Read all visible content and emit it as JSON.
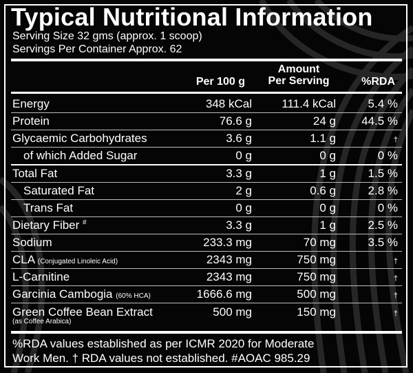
{
  "title": "Typical Nutritional Information",
  "serving_size": "Serving Size 32 gms (approx. 1 scoop)",
  "servings_per_container": "Servings Per Container Approx. 62",
  "headers": {
    "per100": "Per 100 g",
    "amount_line1": "Amount",
    "amount_line2": "Per Serving",
    "rda": "%RDA"
  },
  "rows": [
    {
      "label": "Energy",
      "per100": "348 kCal",
      "serving": "111.4 kCal",
      "rda": "5.4 %"
    },
    {
      "label": "Protein",
      "per100": "76.6 g",
      "serving": "24 g",
      "rda": "44.5 %"
    },
    {
      "label": "Glycaemic Carbohydrates",
      "per100": "3.6 g",
      "serving": "1.1 g",
      "rda": "†"
    },
    {
      "label": "of which Added Sugar",
      "per100": "0 g",
      "serving": "0 g",
      "rda": "0 %"
    },
    {
      "label": "Total Fat",
      "per100": "3.3 g",
      "serving": "1 g",
      "rda": "1.5 %"
    },
    {
      "label": "Saturated Fat",
      "per100": "2 g",
      "serving": "0.6 g",
      "rda": "2.8 %"
    },
    {
      "label": "Trans Fat",
      "per100": "0 g",
      "serving": "0 g",
      "rda": "0 %"
    },
    {
      "label": "Dietary Fiber",
      "mark": "#",
      "per100": "3.3 g",
      "serving": "1 g",
      "rda": "2.5 %"
    },
    {
      "label": "Sodium",
      "per100": "233.3 mg",
      "serving": "70 mg",
      "rda": "3.5 %"
    },
    {
      "label": "CLA",
      "note": "(Conjugated Linoleic Acid)",
      "per100": "2343 mg",
      "serving": "750 mg",
      "rda": "†"
    },
    {
      "label": "L-Carnitine",
      "per100": "2343 mg",
      "serving": "750 mg",
      "rda": "†"
    },
    {
      "label": "Garcinia Cambogia",
      "note": "(60% HCA)",
      "per100": "1666.6 mg",
      "serving": "500 mg",
      "rda": "†"
    },
    {
      "label": "Green Coffee Bean Extract",
      "sub": "(as Coffee Arabica)",
      "per100": "500 mg",
      "serving": "150 mg",
      "rda": "†"
    }
  ],
  "footnote_line1": "%RDA values established as per ICMR 2020 for Moderate",
  "footnote_line2": "Work Men. † RDA values not established.  #AOAC 985.29",
  "colors": {
    "background": "#050505",
    "text": "#ffffff",
    "swirl": "#2a2a2a"
  }
}
